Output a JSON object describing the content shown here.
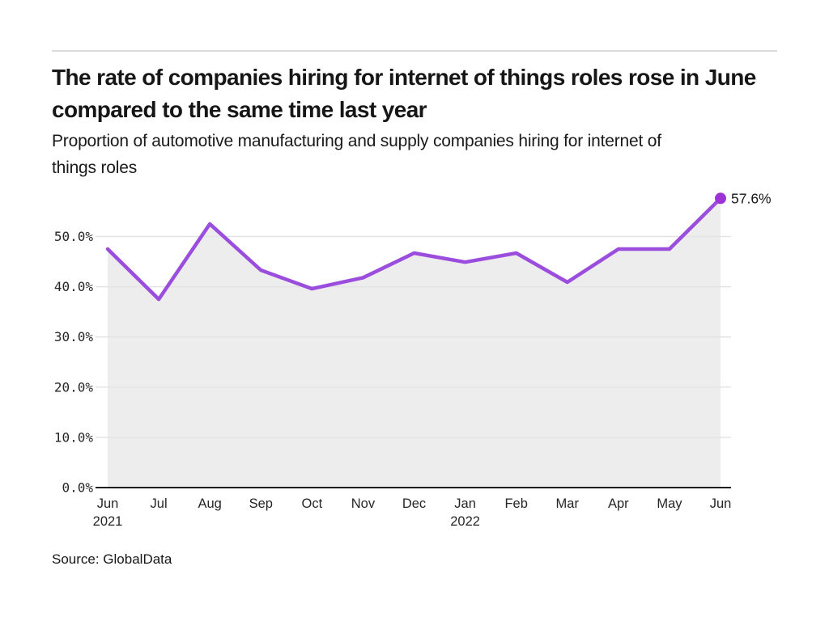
{
  "header": {
    "title": "The rate of companies hiring for internet of things roles rose in June compared to the same time last year",
    "subtitle": "Proportion of automotive manufacturing and supply companies hiring for internet of things roles"
  },
  "footer": {
    "source": "Source: GlobalData"
  },
  "chart_data": {
    "type": "line",
    "title": "Proportion of automotive manufacturing and supply companies hiring for internet of things roles",
    "categories": [
      "Jun",
      "Jul",
      "Aug",
      "Sep",
      "Oct",
      "Nov",
      "Dec",
      "Jan",
      "Feb",
      "Mar",
      "Apr",
      "May",
      "Jun"
    ],
    "year_labels": {
      "0": "2021",
      "7": "2022"
    },
    "values": [
      47.5,
      37.5,
      52.5,
      43.3,
      39.6,
      41.8,
      46.7,
      44.9,
      46.7,
      40.9,
      47.5,
      47.5,
      57.6
    ],
    "end_label": "57.6%",
    "xlabel": "",
    "ylabel": "",
    "ylim": [
      0,
      60
    ],
    "yticks": [
      0,
      10,
      20,
      30,
      40,
      50
    ],
    "ytick_labels": [
      "0.0%",
      "10.0%",
      "20.0%",
      "30.0%",
      "40.0%",
      "50.0%"
    ],
    "grid": true,
    "legend": "none",
    "colors": {
      "line": "#9b4dde",
      "marker": "#9b33d6",
      "area_fill": "#ededed",
      "grid": "#e4e4e4",
      "axis": "#1f1f1f",
      "tick_text": "#262626",
      "annotation_text": "#161616"
    }
  }
}
